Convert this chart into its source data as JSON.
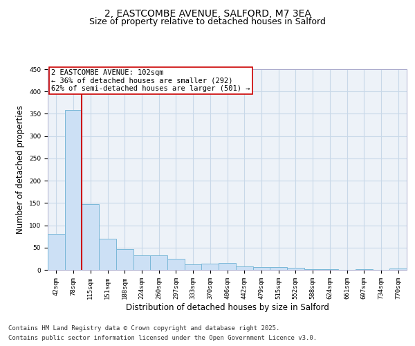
{
  "title_line1": "2, EASTCOMBE AVENUE, SALFORD, M7 3EA",
  "title_line2": "Size of property relative to detached houses in Salford",
  "xlabel": "Distribution of detached houses by size in Salford",
  "ylabel": "Number of detached properties",
  "categories": [
    "42sqm",
    "78sqm",
    "115sqm",
    "151sqm",
    "188sqm",
    "224sqm",
    "260sqm",
    "297sqm",
    "333sqm",
    "370sqm",
    "406sqm",
    "442sqm",
    "479sqm",
    "515sqm",
    "552sqm",
    "588sqm",
    "624sqm",
    "661sqm",
    "697sqm",
    "734sqm",
    "770sqm"
  ],
  "values": [
    80,
    358,
    148,
    70,
    47,
    33,
    32,
    25,
    12,
    14,
    15,
    7,
    6,
    6,
    5,
    2,
    1,
    0,
    1,
    0,
    3
  ],
  "bar_color": "#cce0f5",
  "bar_edge_color": "#7ab8d8",
  "vline_x": 2.0,
  "vline_color": "#cc0000",
  "annotation_text": "2 EASTCOMBE AVENUE: 102sqm\n← 36% of detached houses are smaller (292)\n62% of semi-detached houses are larger (501) →",
  "annotation_box_color": "#ffffff",
  "annotation_box_edge": "#cc0000",
  "ylim": [
    0,
    450
  ],
  "yticks": [
    0,
    50,
    100,
    150,
    200,
    250,
    300,
    350,
    400,
    450
  ],
  "grid_color": "#c8d8e8",
  "bg_color": "#edf2f8",
  "footer_line1": "Contains HM Land Registry data © Crown copyright and database right 2025.",
  "footer_line2": "Contains public sector information licensed under the Open Government Licence v3.0.",
  "title_fontsize": 10,
  "subtitle_fontsize": 9,
  "axis_label_fontsize": 8.5,
  "tick_fontsize": 6.5,
  "annotation_fontsize": 7.5,
  "footer_fontsize": 6.5
}
